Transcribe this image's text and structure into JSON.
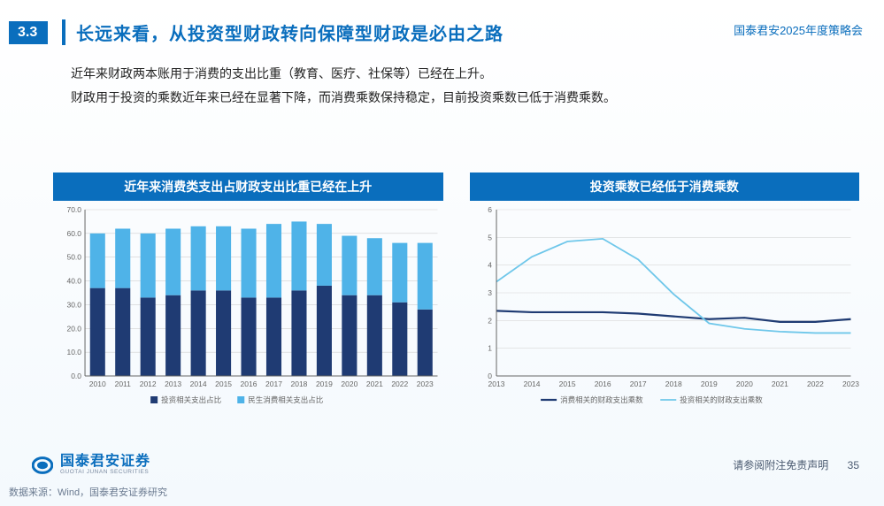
{
  "header": {
    "section_number": "3.3",
    "title": "长远来看，从投资型财政转向保障型财政是必由之路",
    "top_right": "国泰君安2025年度策略会"
  },
  "body": {
    "line1": "近年来财政两本账用于消费的支出比重（教育、医疗、社保等）已经在上升。",
    "line2": "财政用于投资的乘数近年来已经在显著下降，而消费乘数保持稳定，目前投资乘数已低于消费乘数。"
  },
  "chart_left": {
    "type": "stacked-bar",
    "title": "近年来消费类支出占财政支出比重已经在上升",
    "categories": [
      "2010",
      "2011",
      "2012",
      "2013",
      "2014",
      "2015",
      "2016",
      "2017",
      "2018",
      "2019",
      "2020",
      "2021",
      "2022",
      "2023"
    ],
    "series": [
      {
        "name": "投资相关支出占比",
        "color": "#1f3b73",
        "values": [
          37,
          37,
          33,
          34,
          36,
          36,
          33,
          33,
          36,
          38,
          34,
          34,
          31,
          28
        ]
      },
      {
        "name": "民生消费相关支出占比",
        "color": "#4fb3e8",
        "values": [
          23,
          25,
          27,
          28,
          27,
          27,
          29,
          31,
          29,
          26,
          25,
          24,
          25,
          28
        ]
      }
    ],
    "ylim": [
      0,
      70
    ],
    "ytick_step": 10,
    "axis_color": "#666",
    "grid_color": "#d0d0d0",
    "label_fontsize": 9,
    "tick_fontsize": 8.5,
    "bar_width_ratio": 0.6,
    "legend_marker": "square",
    "background_color": "#ffffff"
  },
  "chart_right": {
    "type": "line",
    "title": "投资乘数已经低于消费乘数",
    "x_categories": [
      "2013",
      "2014",
      "2015",
      "2016",
      "2017",
      "2018",
      "2019",
      "2020",
      "2021",
      "2022",
      "2023"
    ],
    "series": [
      {
        "name": "消费相关的财政支出乘数",
        "color": "#1f3b73",
        "width": 2.2,
        "values": [
          2.35,
          2.3,
          2.3,
          2.3,
          2.25,
          2.15,
          2.05,
          2.1,
          1.95,
          1.95,
          2.05
        ]
      },
      {
        "name": "投资相关的财政支出乘数",
        "color": "#6fc7ea",
        "width": 1.8,
        "values": [
          3.4,
          4.3,
          4.85,
          4.95,
          4.2,
          2.95,
          1.9,
          1.7,
          1.6,
          1.55,
          1.55
        ]
      }
    ],
    "ylim": [
      0,
      6
    ],
    "ytick_step": 1,
    "axis_color": "#666",
    "grid_color": "#d8d8d8",
    "tick_fontsize": 8.5,
    "legend_marker": "line",
    "background_color": "#ffffff"
  },
  "footer": {
    "brand_cn": "国泰君安证券",
    "brand_en": "GUOTAI JUNAN SECURITIES",
    "disclaimer": "请参阅附注免责声明",
    "page_number": "35",
    "source": "数据来源：Wind，国泰君安证券研究"
  },
  "colors": {
    "primary": "#0a6ebd",
    "text": "#222222",
    "muted": "#6a7a90"
  }
}
